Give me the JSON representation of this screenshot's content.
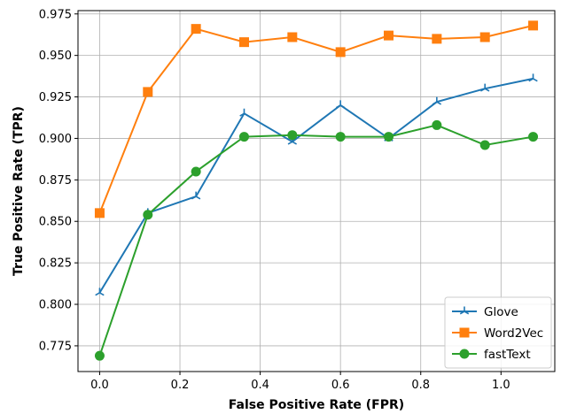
{
  "chart_data": {
    "type": "line",
    "xlabel": "False Positive Rate (FPR)",
    "ylabel": "True Positive Rate (TPR)",
    "xlim": [
      -0.054,
      1.134
    ],
    "ylim": [
      0.7595,
      0.977
    ],
    "xticks": [
      0.0,
      0.2,
      0.4,
      0.6,
      0.8,
      1.0
    ],
    "xtick_labels": [
      "0.0",
      "0.2",
      "0.4",
      "0.6",
      "0.8",
      "1.0"
    ],
    "yticks": [
      0.775,
      0.8,
      0.825,
      0.85,
      0.875,
      0.9,
      0.925,
      0.95,
      0.975
    ],
    "ytick_labels": [
      "0.775",
      "0.800",
      "0.825",
      "0.850",
      "0.875",
      "0.900",
      "0.925",
      "0.950",
      "0.975"
    ],
    "grid": true,
    "legend_position": "lower-right",
    "x": [
      0.0,
      0.12,
      0.24,
      0.36,
      0.48,
      0.6,
      0.72,
      0.84,
      0.96,
      1.08
    ],
    "series": [
      {
        "name": "Glove",
        "color": "#1f77b4",
        "marker": "tri-up",
        "values": [
          0.807,
          0.855,
          0.865,
          0.915,
          0.898,
          0.92,
          0.9,
          0.922,
          0.93,
          0.936
        ]
      },
      {
        "name": "Word2Vec",
        "color": "#ff7f0e",
        "marker": "square",
        "values": [
          0.855,
          0.928,
          0.966,
          0.958,
          0.961,
          0.952,
          0.962,
          0.96,
          0.961,
          0.968
        ]
      },
      {
        "name": "fastText",
        "color": "#2ca02c",
        "marker": "circle",
        "values": [
          0.769,
          0.854,
          0.88,
          0.901,
          0.902,
          0.901,
          0.901,
          0.908,
          0.896,
          0.901
        ]
      }
    ]
  }
}
